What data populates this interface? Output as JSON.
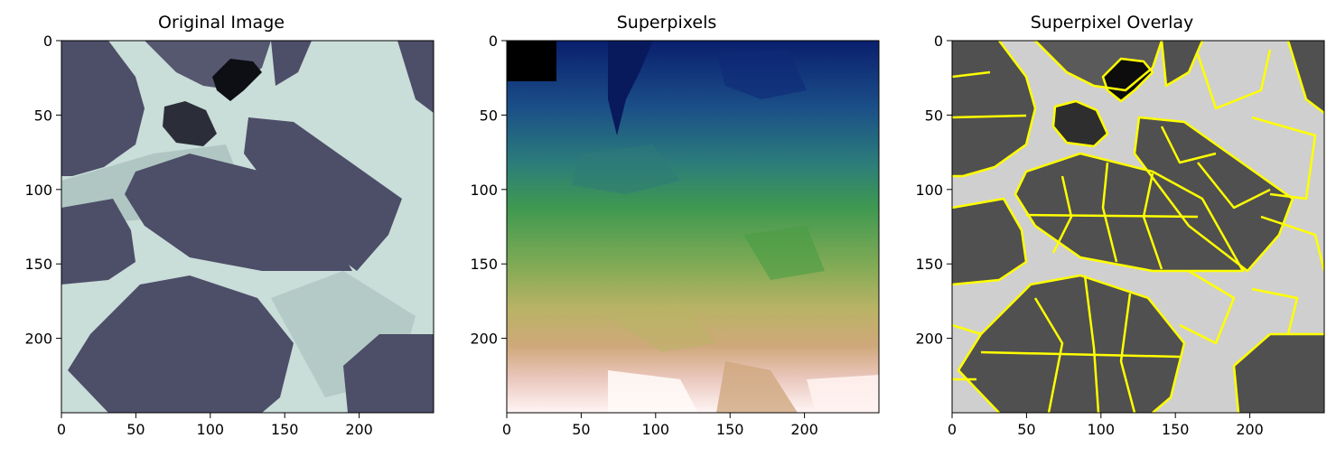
{
  "panels": [
    {
      "title": "Original Image"
    },
    {
      "title": "Superpixels"
    },
    {
      "title": "Superpixel Overlay"
    }
  ],
  "axes": {
    "x_ticks": [
      "0",
      "50",
      "100",
      "150",
      "200"
    ],
    "y_ticks": [
      "0",
      "50",
      "100",
      "150",
      "200"
    ],
    "x_tick_values": [
      0,
      50,
      100,
      150,
      200
    ],
    "y_tick_values": [
      0,
      50,
      100,
      150,
      200
    ],
    "x_range": [
      0,
      250
    ],
    "y_range": [
      0,
      250
    ]
  },
  "colors": {
    "grain": "#4d4e68",
    "matrix": "#c9ddd9",
    "matrix_mid": "#9fb8b4",
    "pore": "#0d0f14",
    "overlay_grain": "#505050",
    "overlay_matrix": "#cfcfcf",
    "boundary": "#ffff00",
    "sp_top": "#0a1f6e",
    "sp_bottom": "#fff5f5"
  }
}
